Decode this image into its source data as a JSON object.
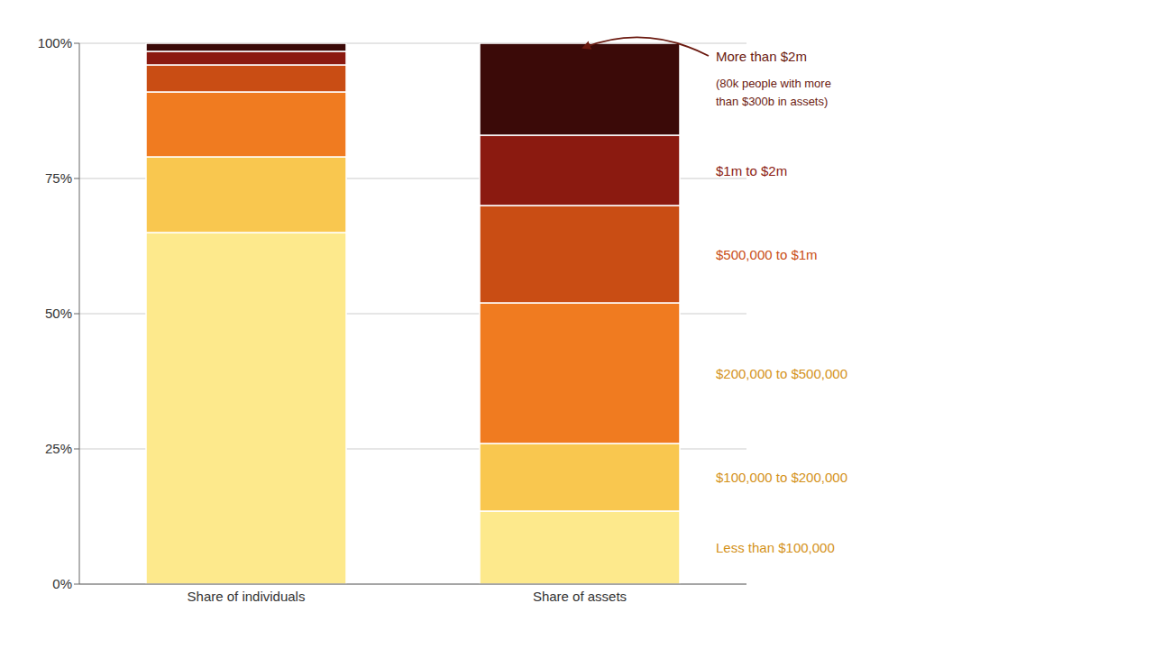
{
  "chart_data": {
    "type": "bar",
    "stacked": true,
    "categories": [
      "Share of individuals",
      "Share of assets"
    ],
    "series": [
      {
        "name": "Less than $100,000",
        "color": "#FDE98C",
        "values": [
          65.0,
          13.5
        ]
      },
      {
        "name": "$100,000 to $200,000",
        "color": "#F9C74F",
        "values": [
          14.0,
          12.5
        ]
      },
      {
        "name": "$200,000 to $500,000",
        "color": "#F07B20",
        "values": [
          12.0,
          26.0
        ]
      },
      {
        "name": "$500,000 to $1m",
        "color": "#C94D14",
        "values": [
          5.0,
          18.0
        ]
      },
      {
        "name": "$1m to $2m",
        "color": "#8B1A10",
        "values": [
          2.5,
          13.0
        ]
      },
      {
        "name": "More than $2m",
        "color": "#3B0A08",
        "values": [
          1.5,
          17.0
        ]
      }
    ],
    "ylim": [
      0,
      100
    ],
    "yticks": [
      {
        "value": 0,
        "label": "0%"
      },
      {
        "value": 25,
        "label": "25%"
      },
      {
        "value": 50,
        "label": "50%"
      },
      {
        "value": 75,
        "label": "75%"
      },
      {
        "value": 100,
        "label": "100%"
      }
    ],
    "grid": true,
    "annotations": [
      {
        "text": "Less than $100,000",
        "color": "#D4921A"
      },
      {
        "text": "$100,000 to $200,000",
        "color": "#D4921A"
      },
      {
        "text": "$200,000 to $500,000",
        "color": "#D4921A"
      },
      {
        "text": "$500,000 to $1m",
        "color": "#C94D14"
      },
      {
        "text": "$1m to $2m",
        "color": "#8B1A10"
      },
      {
        "text": "More than $2m",
        "color": "#6B1A10"
      },
      {
        "text": "(80k people with more\nthan $300b in assets)",
        "color": "#6B1A10"
      }
    ]
  }
}
